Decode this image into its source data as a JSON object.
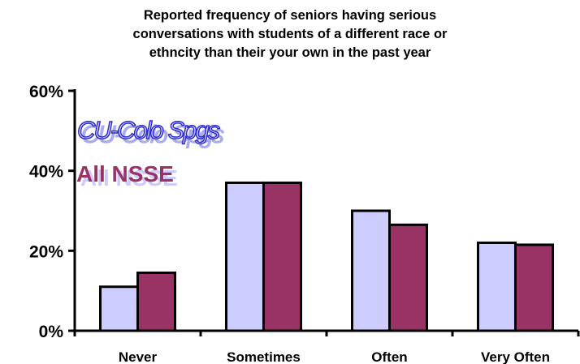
{
  "chart_data": {
    "type": "bar",
    "title_lines": [
      "Reported frequency of seniors having serious",
      "conversations with students of a different race or",
      "ethncity than their your own in the past year"
    ],
    "categories": [
      "Never",
      "Sometimes",
      "Often",
      "Very Often"
    ],
    "series": [
      {
        "name": "CU-Colo Spgs",
        "values": [
          11,
          37,
          30,
          22
        ],
        "color": "#ccccff"
      },
      {
        "name": "All NSSE",
        "values": [
          14.5,
          37,
          26.5,
          21.5
        ],
        "color": "#993366"
      }
    ],
    "y_ticks": [
      "0%",
      "20%",
      "40%",
      "60%"
    ],
    "ylim": [
      0,
      60
    ],
    "grid": false,
    "legend_placement": "top-left"
  }
}
